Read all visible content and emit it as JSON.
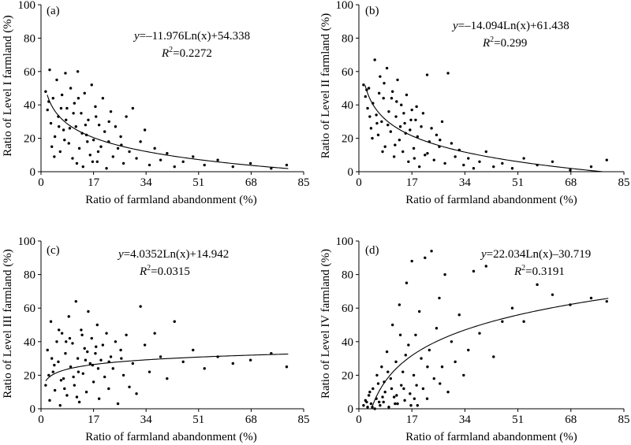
{
  "chart_data": [
    {
      "type": "scatter",
      "panel_label": "(a)",
      "xlabel": "Ratio of farmland abandonment (%)",
      "ylabel": "Ratio of Level I farmland (%)",
      "xlim": [
        0,
        85
      ],
      "ylim": [
        0,
        100
      ],
      "xticks": [
        "0",
        "17",
        "34",
        "51",
        "68",
        "85"
      ],
      "yticks": [
        "0",
        "20",
        "40",
        "60",
        "80",
        "100"
      ],
      "grid": false,
      "equation": {
        "var": "y",
        "rest": "=–11.976Ln(x)+54.338",
        "r2": "=0.2272"
      },
      "trend": {
        "model": "log",
        "a": -11.976,
        "b": 54.338,
        "x_range": [
          2,
          80
        ]
      },
      "points": [
        [
          1.5,
          48
        ],
        [
          2.1,
          37
        ],
        [
          2.8,
          61
        ],
        [
          3.2,
          29
        ],
        [
          3.9,
          44
        ],
        [
          4.5,
          21
        ],
        [
          5.1,
          55
        ],
        [
          5.6,
          33
        ],
        [
          6.2,
          12
        ],
        [
          6.8,
          46
        ],
        [
          7.3,
          25
        ],
        [
          7.9,
          59
        ],
        [
          8.4,
          38
        ],
        [
          9.0,
          17
        ],
        [
          9.6,
          50
        ],
        [
          10.2,
          8
        ],
        [
          10.8,
          41
        ],
        [
          11.3,
          27
        ],
        [
          11.9,
          60
        ],
        [
          12.4,
          14
        ],
        [
          13.0,
          35
        ],
        [
          13.6,
          3
        ],
        [
          14.1,
          47
        ],
        [
          14.7,
          22
        ],
        [
          15.3,
          31
        ],
        [
          15.9,
          10
        ],
        [
          16.4,
          52
        ],
        [
          17.0,
          19
        ],
        [
          17.6,
          39
        ],
        [
          18.2,
          6
        ],
        [
          18.8,
          28
        ],
        [
          19.4,
          15
        ],
        [
          20.0,
          44
        ],
        [
          20.6,
          24
        ],
        [
          21.2,
          2
        ],
        [
          21.9,
          18
        ],
        [
          22.6,
          36
        ],
        [
          23.3,
          9
        ],
        [
          24.1,
          27
        ],
        [
          24.9,
          14
        ],
        [
          25.8,
          21
        ],
        [
          26.7,
          5
        ],
        [
          27.6,
          33
        ],
        [
          28.6,
          12
        ],
        [
          29.7,
          38
        ],
        [
          30.9,
          8
        ],
        [
          32.2,
          18
        ],
        [
          33.6,
          25
        ],
        [
          35.1,
          4
        ],
        [
          36.8,
          14
        ],
        [
          38.7,
          7
        ],
        [
          40.8,
          11
        ],
        [
          43.2,
          3
        ],
        [
          46.0,
          6
        ],
        [
          49.2,
          9
        ],
        [
          52.9,
          4
        ],
        [
          57.2,
          7
        ],
        [
          62.1,
          3
        ],
        [
          67.8,
          5
        ],
        [
          74.5,
          2
        ],
        [
          79.5,
          4
        ],
        [
          3.5,
          15
        ],
        [
          6.5,
          38
        ],
        [
          9.3,
          26
        ],
        [
          12.1,
          44
        ],
        [
          15.0,
          18
        ],
        [
          18.5,
          12
        ],
        [
          22.0,
          30
        ],
        [
          4.3,
          9
        ],
        [
          8.1,
          31
        ],
        [
          11.6,
          5
        ],
        [
          14.4,
          28
        ],
        [
          17.8,
          33
        ],
        [
          26.0,
          16
        ],
        [
          7.6,
          19
        ],
        [
          10.5,
          35
        ],
        [
          13.3,
          23
        ],
        [
          16.7,
          6
        ],
        [
          2.5,
          42
        ],
        [
          5.8,
          27
        ]
      ]
    },
    {
      "type": "scatter",
      "panel_label": "(b)",
      "xlabel": "Ratio of farmland abandonment (%)",
      "ylabel": "Ratio of Level II farmland (%)",
      "xlim": [
        0,
        85
      ],
      "ylim": [
        0,
        100
      ],
      "xticks": [
        "0",
        "17",
        "34",
        "51",
        "68",
        "85"
      ],
      "yticks": [
        "0",
        "20",
        "40",
        "60",
        "80",
        "100"
      ],
      "grid": false,
      "equation": {
        "var": "y",
        "rest": "=–14.094Ln(x)+61.438",
        "r2": "=0.299"
      },
      "trend": {
        "model": "log",
        "a": -14.094,
        "b": 61.438,
        "x_range": [
          2,
          80
        ]
      },
      "points": [
        [
          1.5,
          52
        ],
        [
          2.1,
          45
        ],
        [
          2.8,
          38
        ],
        [
          3.2,
          50
        ],
        [
          3.9,
          26
        ],
        [
          4.5,
          41
        ],
        [
          5.1,
          67
        ],
        [
          5.6,
          34
        ],
        [
          6.2,
          22
        ],
        [
          6.8,
          57
        ],
        [
          7.3,
          30
        ],
        [
          7.9,
          44
        ],
        [
          8.4,
          15
        ],
        [
          9.0,
          62
        ],
        [
          9.6,
          36
        ],
        [
          10.2,
          24
        ],
        [
          10.8,
          48
        ],
        [
          11.3,
          9
        ],
        [
          11.9,
          33
        ],
        [
          12.4,
          55
        ],
        [
          13.0,
          19
        ],
        [
          13.6,
          40
        ],
        [
          14.1,
          12
        ],
        [
          14.7,
          29
        ],
        [
          15.3,
          46
        ],
        [
          15.9,
          6
        ],
        [
          16.4,
          25
        ],
        [
          17.0,
          37
        ],
        [
          17.6,
          14
        ],
        [
          18.2,
          31
        ],
        [
          18.8,
          21
        ],
        [
          19.4,
          3
        ],
        [
          20.0,
          27
        ],
        [
          20.6,
          35
        ],
        [
          21.2,
          10
        ],
        [
          21.9,
          58
        ],
        [
          22.6,
          18
        ],
        [
          23.3,
          26
        ],
        [
          24.1,
          7
        ],
        [
          24.9,
          22
        ],
        [
          25.8,
          15
        ],
        [
          26.7,
          30
        ],
        [
          27.6,
          5
        ],
        [
          28.6,
          59
        ],
        [
          29.7,
          17
        ],
        [
          30.9,
          9
        ],
        [
          32.2,
          13
        ],
        [
          33.6,
          4
        ],
        [
          35.1,
          8
        ],
        [
          36.8,
          2
        ],
        [
          38.7,
          6
        ],
        [
          40.8,
          12
        ],
        [
          43.2,
          3
        ],
        [
          46.0,
          5
        ],
        [
          49.2,
          2
        ],
        [
          52.9,
          8
        ],
        [
          57.2,
          4
        ],
        [
          62.1,
          6
        ],
        [
          67.8,
          1
        ],
        [
          74.5,
          3
        ],
        [
          79.5,
          7
        ],
        [
          3.5,
          33
        ],
        [
          6.5,
          47
        ],
        [
          9.3,
          28
        ],
        [
          12.1,
          42
        ],
        [
          15.0,
          23
        ],
        [
          18.5,
          39
        ],
        [
          22.0,
          11
        ],
        [
          4.3,
          20
        ],
        [
          8.1,
          53
        ],
        [
          11.6,
          16
        ],
        [
          14.4,
          35
        ],
        [
          17.8,
          8
        ],
        [
          26.0,
          19
        ],
        [
          7.6,
          12
        ],
        [
          10.5,
          44
        ],
        [
          13.3,
          27
        ],
        [
          16.7,
          31
        ],
        [
          2.5,
          49
        ],
        [
          5.8,
          29
        ]
      ]
    },
    {
      "type": "scatter",
      "panel_label": "(c)",
      "xlabel": "Ratio of farmland abandonment (%)",
      "ylabel": "Ratio of  Level III farmland (%)",
      "xlim": [
        0,
        85
      ],
      "ylim": [
        0,
        100
      ],
      "xticks": [
        "0",
        "17",
        "34",
        "51",
        "68",
        "85"
      ],
      "yticks": [
        "0",
        "20",
        "40",
        "60",
        "80",
        "100"
      ],
      "grid": false,
      "equation": {
        "var": "y",
        "rest": "=4.0352Ln(x)+14.942",
        "r2": "=0.0315"
      },
      "trend": {
        "model": "log",
        "a": 4.0352,
        "b": 14.942,
        "x_range": [
          1.5,
          80
        ]
      },
      "points": [
        [
          1.5,
          14
        ],
        [
          2.1,
          35
        ],
        [
          2.8,
          5
        ],
        [
          3.2,
          52
        ],
        [
          3.9,
          22
        ],
        [
          4.5,
          11
        ],
        [
          5.1,
          40
        ],
        [
          5.6,
          28
        ],
        [
          6.2,
          2
        ],
        [
          6.8,
          45
        ],
        [
          7.3,
          18
        ],
        [
          7.9,
          33
        ],
        [
          8.4,
          8
        ],
        [
          9.0,
          55
        ],
        [
          9.6,
          25
        ],
        [
          10.2,
          39
        ],
        [
          10.8,
          14
        ],
        [
          11.3,
          64
        ],
        [
          11.9,
          30
        ],
        [
          12.4,
          4
        ],
        [
          13.0,
          47
        ],
        [
          13.6,
          21
        ],
        [
          14.1,
          36
        ],
        [
          14.7,
          10
        ],
        [
          15.3,
          58
        ],
        [
          15.9,
          27
        ],
        [
          16.4,
          42
        ],
        [
          17.0,
          16
        ],
        [
          17.6,
          33
        ],
        [
          18.2,
          50
        ],
        [
          18.8,
          6
        ],
        [
          19.4,
          29
        ],
        [
          20.0,
          38
        ],
        [
          20.6,
          19
        ],
        [
          21.2,
          45
        ],
        [
          21.9,
          12
        ],
        [
          22.6,
          31
        ],
        [
          23.3,
          24
        ],
        [
          24.1,
          40
        ],
        [
          24.9,
          3
        ],
        [
          25.8,
          35
        ],
        [
          26.7,
          20
        ],
        [
          27.6,
          44
        ],
        [
          28.6,
          13
        ],
        [
          29.7,
          27
        ],
        [
          30.9,
          9
        ],
        [
          32.2,
          61
        ],
        [
          33.6,
          38
        ],
        [
          35.1,
          22
        ],
        [
          36.8,
          45
        ],
        [
          38.7,
          31
        ],
        [
          40.8,
          18
        ],
        [
          43.2,
          52
        ],
        [
          46.0,
          28
        ],
        [
          49.2,
          35
        ],
        [
          52.9,
          24
        ],
        [
          57.2,
          31
        ],
        [
          62.1,
          27
        ],
        [
          67.8,
          29
        ],
        [
          74.5,
          33
        ],
        [
          79.5,
          25
        ],
        [
          3.5,
          30
        ],
        [
          6.5,
          17
        ],
        [
          9.3,
          42
        ],
        [
          12.1,
          22
        ],
        [
          15.0,
          34
        ],
        [
          18.5,
          24
        ],
        [
          22.0,
          28
        ],
        [
          4.3,
          26
        ],
        [
          8.1,
          40
        ],
        [
          11.6,
          7
        ],
        [
          14.4,
          29
        ],
        [
          17.8,
          37
        ],
        [
          26.0,
          30
        ],
        [
          7.6,
          12
        ],
        [
          10.5,
          19
        ],
        [
          13.3,
          44
        ],
        [
          16.7,
          26
        ],
        [
          2.5,
          20
        ],
        [
          5.8,
          47
        ]
      ]
    },
    {
      "type": "scatter",
      "panel_label": "(d)",
      "xlabel": "Ratio of farmland abandonment (%)",
      "ylabel": "Ratio of Level IV farmland (%)",
      "xlim": [
        0,
        85
      ],
      "ylim": [
        0,
        100
      ],
      "xticks": [
        "0",
        "17",
        "34",
        "51",
        "68",
        "85"
      ],
      "yticks": [
        "0",
        "20",
        "40",
        "60",
        "80",
        "100"
      ],
      "grid": false,
      "equation": {
        "var": "y",
        "rest": "=22.034Ln(x)–30.719",
        "r2": "=0.3191"
      },
      "trend": {
        "model": "log",
        "a": 22.034,
        "b": -30.719,
        "x_range": [
          4.3,
          80
        ]
      },
      "points": [
        [
          1.5,
          2
        ],
        [
          2.1,
          5
        ],
        [
          2.8,
          1
        ],
        [
          3.2,
          8
        ],
        [
          3.9,
          3
        ],
        [
          4.5,
          12
        ],
        [
          5.1,
          0
        ],
        [
          5.6,
          6
        ],
        [
          6.2,
          15
        ],
        [
          6.8,
          2
        ],
        [
          7.3,
          25
        ],
        [
          7.9,
          4
        ],
        [
          8.4,
          10
        ],
        [
          9.0,
          34
        ],
        [
          9.6,
          1
        ],
        [
          10.2,
          18
        ],
        [
          10.8,
          50
        ],
        [
          11.3,
          7
        ],
        [
          11.9,
          28
        ],
        [
          12.4,
          3
        ],
        [
          13.0,
          62
        ],
        [
          13.6,
          14
        ],
        [
          14.1,
          22
        ],
        [
          14.7,
          5
        ],
        [
          15.3,
          75
        ],
        [
          15.9,
          38
        ],
        [
          16.4,
          9
        ],
        [
          17.0,
          88
        ],
        [
          17.6,
          20
        ],
        [
          18.2,
          44
        ],
        [
          18.8,
          2
        ],
        [
          19.4,
          58
        ],
        [
          20.0,
          30
        ],
        [
          20.6,
          12
        ],
        [
          21.2,
          90
        ],
        [
          21.9,
          6
        ],
        [
          22.6,
          35
        ],
        [
          23.3,
          94
        ],
        [
          24.1,
          18
        ],
        [
          24.9,
          48
        ],
        [
          25.8,
          66
        ],
        [
          26.7,
          25
        ],
        [
          27.6,
          80
        ],
        [
          28.6,
          10
        ],
        [
          29.7,
          40
        ],
        [
          30.9,
          28
        ],
        [
          32.2,
          56
        ],
        [
          33.6,
          20
        ],
        [
          35.1,
          35
        ],
        [
          36.8,
          82
        ],
        [
          38.7,
          45
        ],
        [
          40.8,
          85
        ],
        [
          43.2,
          31
        ],
        [
          46.0,
          52
        ],
        [
          49.2,
          60
        ],
        [
          52.9,
          52
        ],
        [
          57.2,
          74
        ],
        [
          62.1,
          68
        ],
        [
          67.8,
          62
        ],
        [
          74.5,
          66
        ],
        [
          79.5,
          64
        ],
        [
          3.5,
          10
        ],
        [
          6.5,
          4
        ],
        [
          9.3,
          22
        ],
        [
          12.1,
          8
        ],
        [
          15.0,
          32
        ],
        [
          18.5,
          14
        ],
        [
          22.0,
          25
        ],
        [
          4.3,
          1
        ],
        [
          8.1,
          16
        ],
        [
          11.6,
          3
        ],
        [
          14.4,
          12
        ],
        [
          17.8,
          6
        ],
        [
          26.0,
          15
        ],
        [
          7.6,
          7
        ],
        [
          10.5,
          12
        ],
        [
          13.3,
          44
        ],
        [
          16.7,
          2
        ],
        [
          2.5,
          4
        ],
        [
          5.8,
          20
        ]
      ]
    }
  ]
}
